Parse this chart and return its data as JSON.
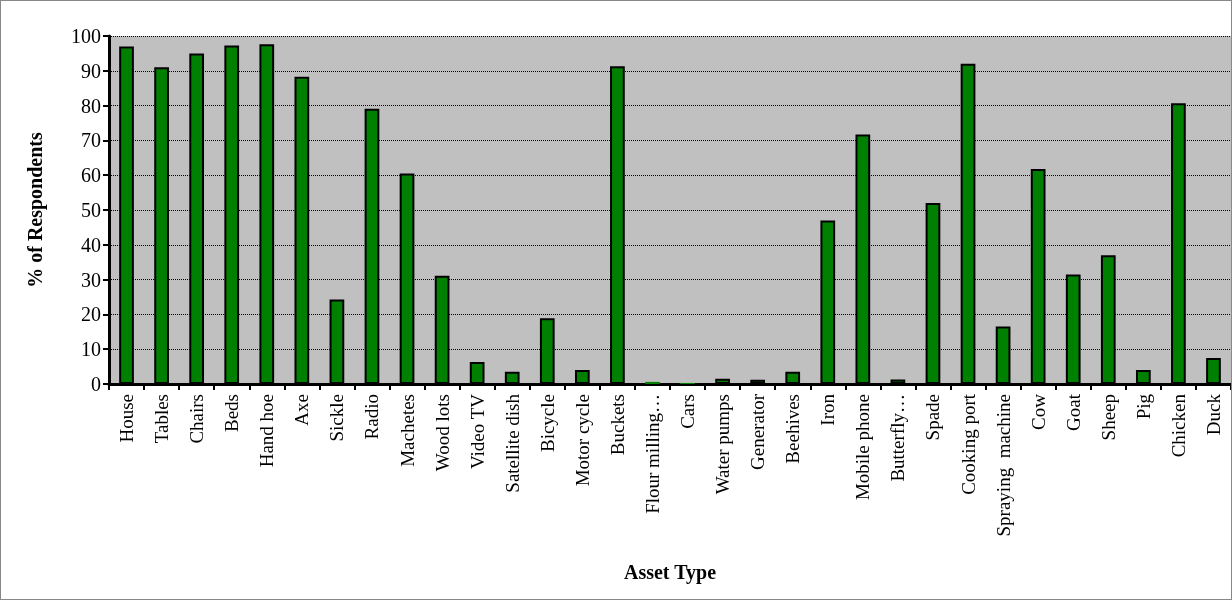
{
  "chart_data": {
    "type": "bar",
    "xlabel": "Asset Type",
    "ylabel": "% of Respondents",
    "categories": [
      "House",
      "Tables",
      "Chairs",
      "Beds",
      "Hand hoe",
      "Axe",
      "Sickle",
      "Radio",
      "Machetes",
      "Wood lots",
      "Video TV",
      "Satellite dish",
      "Bicycle",
      "Motor cycle",
      "Buckets",
      "Flour milling…",
      "Cars",
      "Water pumps",
      "Generator",
      "Beehives",
      "Iron",
      "Mobile phone",
      "Butterfly…",
      "Spade",
      "Cooking port",
      "Spraying  machine",
      "Cow",
      "Goat",
      "Sheep",
      "Pig",
      "Chicken",
      "Duck"
    ],
    "values": [
      97,
      91,
      95,
      97.3,
      97.6,
      88.3,
      24.3,
      79.1,
      60.5,
      31.1,
      6.3,
      3.5,
      18.9,
      4,
      91.3,
      0.6,
      0.3,
      1.5,
      1.2,
      3.5,
      47,
      71.7,
      1.3,
      52,
      92,
      16.5,
      61.8,
      31.5,
      37,
      4,
      80.7,
      7.5
    ],
    "color": "#008000",
    "ylim": [
      0,
      100
    ],
    "yticks": [
      0,
      10,
      20,
      30,
      40,
      50,
      60,
      70,
      80,
      90,
      100
    ],
    "grid": "y"
  }
}
